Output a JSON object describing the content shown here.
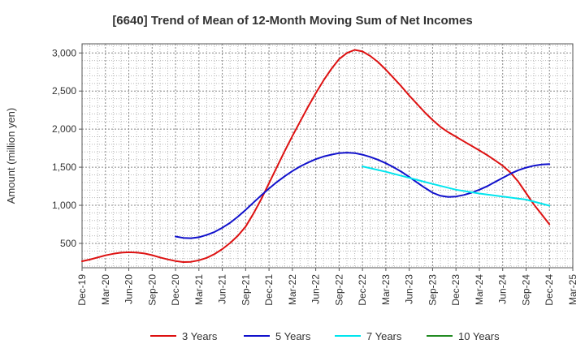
{
  "chart_data": {
    "type": "line",
    "title": "[6640]  Trend of Mean of 12-Month Moving Sum of Net Incomes",
    "xlabel": "",
    "ylabel": "Amount (million yen)",
    "ylim": [
      180,
      3120
    ],
    "yticks": [
      500,
      1000,
      1500,
      2000,
      2500,
      3000
    ],
    "ytick_labels": [
      "500",
      "1,000",
      "1,500",
      "2,000",
      "2,500",
      "3,000"
    ],
    "xlim": [
      "2019-12",
      "2025-03"
    ],
    "xtick_labels": [
      "Dec-19",
      "Mar-20",
      "Jun-20",
      "Sep-20",
      "Dec-20",
      "Mar-21",
      "Jun-21",
      "Sep-21",
      "Dec-21",
      "Mar-22",
      "Jun-22",
      "Sep-22",
      "Dec-22",
      "Mar-23",
      "Jun-23",
      "Sep-23",
      "Dec-23",
      "Mar-24",
      "Jun-24",
      "Sep-24",
      "Dec-24",
      "Mar-25"
    ],
    "grid": true,
    "legend_position": "bottom",
    "series": [
      {
        "name": "3 Years",
        "color": "#dd1111",
        "points": [
          [
            "2019-12",
            265
          ],
          [
            "2020-01",
            288
          ],
          [
            "2020-02",
            315
          ],
          [
            "2020-03",
            343
          ],
          [
            "2020-04",
            363
          ],
          [
            "2020-05",
            378
          ],
          [
            "2020-06",
            383
          ],
          [
            "2020-07",
            380
          ],
          [
            "2020-08",
            368
          ],
          [
            "2020-09",
            345
          ],
          [
            "2020-10",
            315
          ],
          [
            "2020-11",
            290
          ],
          [
            "2020-12",
            268
          ],
          [
            "2021-01",
            255
          ],
          [
            "2021-02",
            258
          ],
          [
            "2021-03",
            278
          ],
          [
            "2021-04",
            310
          ],
          [
            "2021-05",
            360
          ],
          [
            "2021-06",
            425
          ],
          [
            "2021-07",
            505
          ],
          [
            "2021-08",
            600
          ],
          [
            "2021-09",
            720
          ],
          [
            "2021-10",
            890
          ],
          [
            "2021-11",
            1080
          ],
          [
            "2021-12",
            1290
          ],
          [
            "2022-01",
            1500
          ],
          [
            "2022-02",
            1710
          ],
          [
            "2022-03",
            1910
          ],
          [
            "2022-04",
            2100
          ],
          [
            "2022-05",
            2290
          ],
          [
            "2022-06",
            2470
          ],
          [
            "2022-07",
            2640
          ],
          [
            "2022-08",
            2790
          ],
          [
            "2022-09",
            2920
          ],
          [
            "2022-10",
            3000
          ],
          [
            "2022-11",
            3040
          ],
          [
            "2022-12",
            3020
          ],
          [
            "2023-01",
            2960
          ],
          [
            "2023-02",
            2880
          ],
          [
            "2023-03",
            2780
          ],
          [
            "2023-04",
            2670
          ],
          [
            "2023-05",
            2560
          ],
          [
            "2023-06",
            2440
          ],
          [
            "2023-07",
            2330
          ],
          [
            "2023-08",
            2220
          ],
          [
            "2023-09",
            2120
          ],
          [
            "2023-10",
            2030
          ],
          [
            "2023-11",
            1960
          ],
          [
            "2023-12",
            1900
          ],
          [
            "2024-01",
            1840
          ],
          [
            "2024-02",
            1780
          ],
          [
            "2024-03",
            1720
          ],
          [
            "2024-04",
            1660
          ],
          [
            "2024-05",
            1590
          ],
          [
            "2024-06",
            1520
          ],
          [
            "2024-07",
            1430
          ],
          [
            "2024-08",
            1310
          ],
          [
            "2024-09",
            1160
          ],
          [
            "2024-10",
            1010
          ],
          [
            "2024-11",
            880
          ],
          [
            "2024-12",
            750
          ]
        ]
      },
      {
        "name": "5 Years",
        "color": "#1111cc",
        "points": [
          [
            "2020-12",
            590
          ],
          [
            "2021-01",
            572
          ],
          [
            "2021-02",
            568
          ],
          [
            "2021-03",
            580
          ],
          [
            "2021-04",
            610
          ],
          [
            "2021-05",
            650
          ],
          [
            "2021-06",
            705
          ],
          [
            "2021-07",
            770
          ],
          [
            "2021-08",
            850
          ],
          [
            "2021-09",
            940
          ],
          [
            "2021-10",
            1035
          ],
          [
            "2021-11",
            1130
          ],
          [
            "2021-12",
            1220
          ],
          [
            "2022-01",
            1305
          ],
          [
            "2022-02",
            1380
          ],
          [
            "2022-03",
            1450
          ],
          [
            "2022-04",
            1510
          ],
          [
            "2022-05",
            1560
          ],
          [
            "2022-06",
            1605
          ],
          [
            "2022-07",
            1640
          ],
          [
            "2022-08",
            1665
          ],
          [
            "2022-09",
            1685
          ],
          [
            "2022-10",
            1692
          ],
          [
            "2022-11",
            1685
          ],
          [
            "2022-12",
            1665
          ],
          [
            "2023-01",
            1635
          ],
          [
            "2023-02",
            1598
          ],
          [
            "2023-03",
            1552
          ],
          [
            "2023-04",
            1500
          ],
          [
            "2023-05",
            1440
          ],
          [
            "2023-06",
            1372
          ],
          [
            "2023-07",
            1300
          ],
          [
            "2023-08",
            1230
          ],
          [
            "2023-09",
            1165
          ],
          [
            "2023-10",
            1125
          ],
          [
            "2023-11",
            1110
          ],
          [
            "2023-12",
            1115
          ],
          [
            "2024-01",
            1135
          ],
          [
            "2024-02",
            1165
          ],
          [
            "2024-03",
            1205
          ],
          [
            "2024-04",
            1250
          ],
          [
            "2024-05",
            1305
          ],
          [
            "2024-06",
            1360
          ],
          [
            "2024-07",
            1415
          ],
          [
            "2024-08",
            1460
          ],
          [
            "2024-09",
            1495
          ],
          [
            "2024-10",
            1520
          ],
          [
            "2024-11",
            1535
          ],
          [
            "2024-12",
            1540
          ]
        ]
      },
      {
        "name": "7 Years",
        "color": "#00e5ee",
        "points": [
          [
            "2022-12",
            1510
          ],
          [
            "2023-03",
            1440
          ],
          [
            "2023-06",
            1360
          ],
          [
            "2023-09",
            1280
          ],
          [
            "2023-12",
            1205
          ],
          [
            "2024-03",
            1155
          ],
          [
            "2024-06",
            1115
          ],
          [
            "2024-09",
            1075
          ],
          [
            "2024-12",
            995
          ]
        ]
      },
      {
        "name": "10 Years",
        "color": "#228b22",
        "points": []
      }
    ]
  }
}
